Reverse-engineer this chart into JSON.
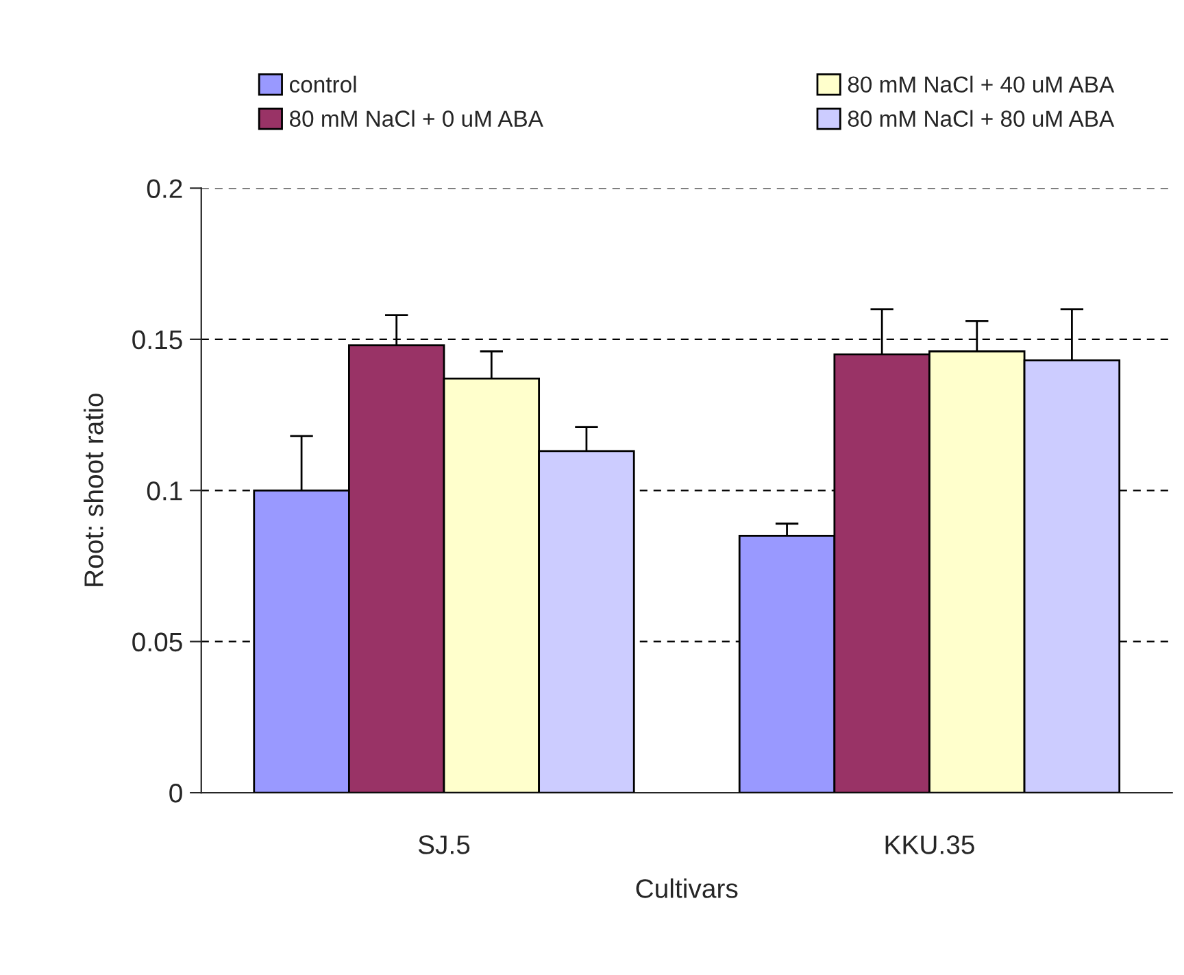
{
  "chart_data": {
    "type": "bar",
    "xlabel": "Cultivars",
    "ylabel": "Root: shoot ratio",
    "categories": [
      "SJ.5",
      "KKU.35"
    ],
    "series": [
      {
        "name": "control",
        "color": "#9999ff",
        "values": [
          0.1,
          0.085
        ],
        "errors": [
          0.018,
          0.004
        ]
      },
      {
        "name": "80 mM NaCl + 0 uM ABA",
        "color": "#993366",
        "values": [
          0.148,
          0.145
        ],
        "errors": [
          0.01,
          0.015
        ]
      },
      {
        "name": "80 mM NaCl + 40 uM ABA",
        "color": "#ffffcc",
        "values": [
          0.137,
          0.146
        ],
        "errors": [
          0.009,
          0.01
        ]
      },
      {
        "name": "80 mM NaCl + 80 uM ABA",
        "color": "#ccccff",
        "values": [
          0.113,
          0.143
        ],
        "errors": [
          0.008,
          0.017
        ]
      }
    ],
    "ylim": [
      0,
      0.2
    ],
    "yticks": [
      0,
      0.05,
      {
        "value": 0.1,
        "label": "0.1"
      },
      0.15,
      {
        "value": 0.2,
        "label": "0.2"
      }
    ],
    "grid": "y",
    "legend": "top"
  }
}
